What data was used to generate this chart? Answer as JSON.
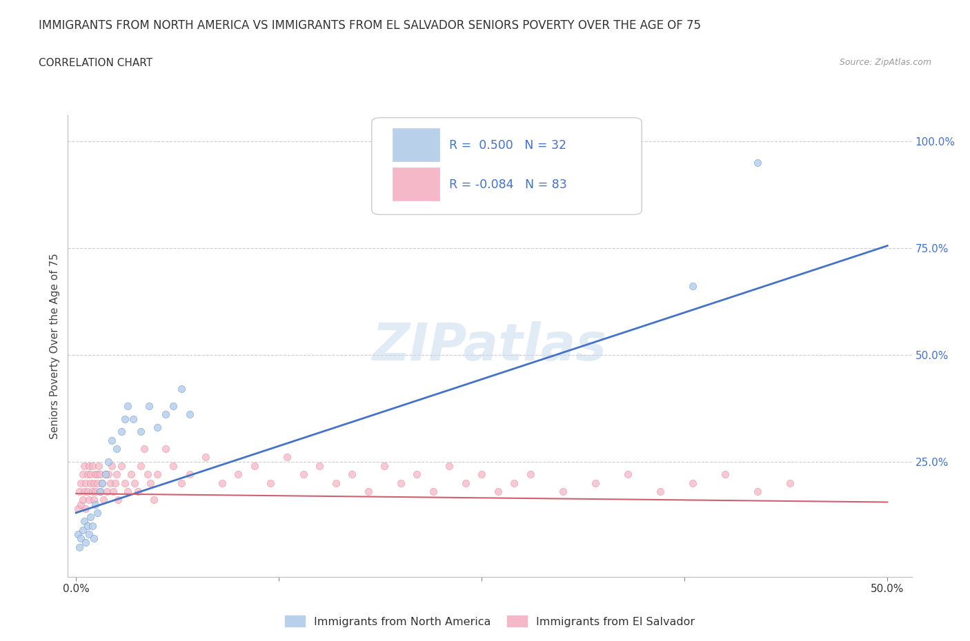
{
  "title": "IMMIGRANTS FROM NORTH AMERICA VS IMMIGRANTS FROM EL SALVADOR SENIORS POVERTY OVER THE AGE OF 75",
  "subtitle": "CORRELATION CHART",
  "source": "Source: ZipAtlas.com",
  "ylabel": "Seniors Poverty Over the Age of 75",
  "watermark": "ZIPatlas",
  "series1": {
    "label": "Immigrants from North America",
    "R": 0.5,
    "N": 32,
    "color": "#b8d0ea",
    "edge_color": "#4472c4",
    "line_color": "#4472c4",
    "x": [
      0.001,
      0.002,
      0.003,
      0.004,
      0.005,
      0.006,
      0.007,
      0.008,
      0.009,
      0.01,
      0.011,
      0.012,
      0.013,
      0.015,
      0.016,
      0.018,
      0.02,
      0.022,
      0.025,
      0.028,
      0.03,
      0.032,
      0.035,
      0.04,
      0.045,
      0.05,
      0.055,
      0.06,
      0.065,
      0.07,
      0.38,
      0.42
    ],
    "y": [
      0.08,
      0.05,
      0.07,
      0.09,
      0.11,
      0.06,
      0.1,
      0.08,
      0.12,
      0.1,
      0.07,
      0.15,
      0.13,
      0.18,
      0.2,
      0.22,
      0.25,
      0.3,
      0.28,
      0.32,
      0.35,
      0.38,
      0.35,
      0.32,
      0.38,
      0.33,
      0.36,
      0.38,
      0.42,
      0.36,
      0.66,
      0.95
    ]
  },
  "series2": {
    "label": "Immigrants from El Salvador",
    "R": -0.084,
    "N": 83,
    "color": "#f5b8c8",
    "edge_color": "#d06070",
    "line_color": "#d06070",
    "x": [
      0.001,
      0.002,
      0.003,
      0.003,
      0.004,
      0.004,
      0.005,
      0.005,
      0.006,
      0.006,
      0.007,
      0.007,
      0.008,
      0.008,
      0.009,
      0.009,
      0.01,
      0.01,
      0.011,
      0.011,
      0.012,
      0.012,
      0.013,
      0.013,
      0.014,
      0.015,
      0.015,
      0.016,
      0.017,
      0.018,
      0.019,
      0.02,
      0.021,
      0.022,
      0.023,
      0.024,
      0.025,
      0.026,
      0.028,
      0.03,
      0.032,
      0.034,
      0.036,
      0.038,
      0.04,
      0.042,
      0.044,
      0.046,
      0.048,
      0.05,
      0.055,
      0.06,
      0.065,
      0.07,
      0.08,
      0.09,
      0.1,
      0.11,
      0.12,
      0.13,
      0.14,
      0.15,
      0.16,
      0.17,
      0.18,
      0.19,
      0.2,
      0.21,
      0.22,
      0.23,
      0.24,
      0.25,
      0.26,
      0.27,
      0.28,
      0.3,
      0.32,
      0.34,
      0.36,
      0.38,
      0.4,
      0.42,
      0.44
    ],
    "y": [
      0.14,
      0.18,
      0.2,
      0.15,
      0.22,
      0.16,
      0.18,
      0.24,
      0.2,
      0.14,
      0.22,
      0.18,
      0.24,
      0.16,
      0.2,
      0.22,
      0.18,
      0.24,
      0.2,
      0.16,
      0.22,
      0.18,
      0.2,
      0.22,
      0.24,
      0.18,
      0.22,
      0.2,
      0.16,
      0.22,
      0.18,
      0.22,
      0.2,
      0.24,
      0.18,
      0.2,
      0.22,
      0.16,
      0.24,
      0.2,
      0.18,
      0.22,
      0.2,
      0.18,
      0.24,
      0.28,
      0.22,
      0.2,
      0.16,
      0.22,
      0.28,
      0.24,
      0.2,
      0.22,
      0.26,
      0.2,
      0.22,
      0.24,
      0.2,
      0.26,
      0.22,
      0.24,
      0.2,
      0.22,
      0.18,
      0.24,
      0.2,
      0.22,
      0.18,
      0.24,
      0.2,
      0.22,
      0.18,
      0.2,
      0.22,
      0.18,
      0.2,
      0.22,
      0.18,
      0.2,
      0.22,
      0.18,
      0.2
    ]
  },
  "trend1_x": [
    0.0,
    0.5
  ],
  "trend1_y": [
    0.13,
    0.755
  ],
  "trend2_x": [
    0.0,
    0.5
  ],
  "trend2_y": [
    0.175,
    0.155
  ],
  "xlim": [
    -0.005,
    0.515
  ],
  "ylim": [
    -0.02,
    1.06
  ],
  "yticks": [
    0.0,
    0.25,
    0.5,
    0.75,
    1.0
  ],
  "ytick_labels": [
    "",
    "25.0%",
    "50.0%",
    "75.0%",
    "100.0%"
  ],
  "grid_color": "#cccccc",
  "background_color": "#ffffff",
  "legend_R_color": "#4472c4",
  "title_fontsize": 12,
  "subtitle_fontsize": 11,
  "axis_label_fontsize": 11,
  "tick_fontsize": 11
}
